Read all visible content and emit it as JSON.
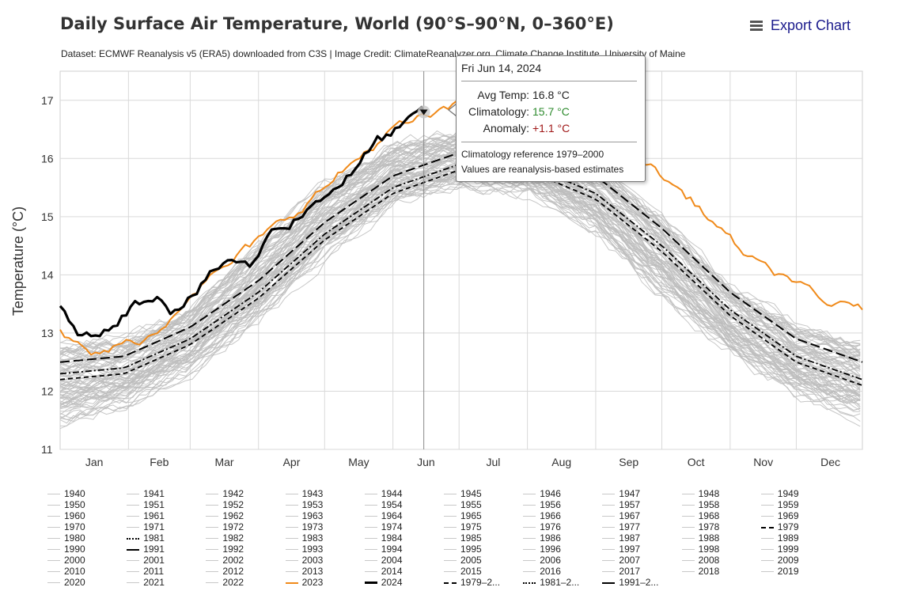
{
  "title": "Daily Surface Air Temperature, World (90°S–90°N, 0–360°E)",
  "subtitle": "Dataset: ECMWF Reanalysis v5 (ERA5) downloaded from C3S | Image Credit: ClimateReanalyzer.org, Climate Change Institute, University of Maine",
  "export_label": "Export Chart",
  "tooltip": {
    "date": "Fri Jun 14, 2024",
    "avg_label": "Avg Temp:",
    "avg_value": "16.8 °C",
    "clim_label": "Climatology:",
    "clim_value": "15.7 °C",
    "anom_label": "Anomaly:",
    "anom_value": "+1.1 °C",
    "note1": "Climatology reference 1979–2000",
    "note2": "Values are reanalysis-based estimates"
  },
  "colors": {
    "historical": "#bdbdbd",
    "year_2023": "#f08a1a",
    "year_2024": "#000000",
    "climatology": "#000000",
    "tooltip_clim": "#2e8b2e",
    "tooltip_anom": "#a01818",
    "export": "#1a1a8c"
  },
  "chart_data": {
    "type": "line",
    "title": "Daily Surface Air Temperature, World (90°S–90°N, 0–360°E)",
    "ylabel": "Temperature (°C)",
    "xlabel": "",
    "ylim": [
      11,
      17.5
    ],
    "y_ticks": [
      11,
      12,
      13,
      14,
      15,
      16,
      17
    ],
    "x_months": [
      "Jan",
      "Feb",
      "Mar",
      "Apr",
      "May",
      "Jun",
      "Jul",
      "Aug",
      "Sep",
      "Oct",
      "Nov",
      "Dec"
    ],
    "x_unit": "day of year",
    "grid": true,
    "legend_placement": "bottom",
    "historical_years": "1940–2022 (grey lines)",
    "historical_band": [
      {
        "x": 1,
        "low": 11.4,
        "high": 12.9
      },
      {
        "x": 30,
        "low": 11.7,
        "high": 13.0
      },
      {
        "x": 60,
        "low": 12.3,
        "high": 13.5
      },
      {
        "x": 91,
        "low": 13.2,
        "high": 14.6
      },
      {
        "x": 121,
        "low": 14.3,
        "high": 15.6
      },
      {
        "x": 152,
        "low": 15.2,
        "high": 16.3
      },
      {
        "x": 182,
        "low": 15.5,
        "high": 16.5
      },
      {
        "x": 213,
        "low": 15.4,
        "high": 16.4
      },
      {
        "x": 244,
        "low": 14.7,
        "high": 16.0
      },
      {
        "x": 274,
        "low": 13.6,
        "high": 15.1
      },
      {
        "x": 305,
        "low": 12.6,
        "high": 13.9
      },
      {
        "x": 335,
        "low": 11.9,
        "high": 13.2
      },
      {
        "x": 365,
        "low": 11.5,
        "high": 12.9
      }
    ],
    "series": [
      {
        "name": "2023",
        "values": [
          {
            "x": 1,
            "y": 13.0
          },
          {
            "x": 15,
            "y": 12.6
          },
          {
            "x": 30,
            "y": 12.8
          },
          {
            "x": 45,
            "y": 13.0
          },
          {
            "x": 60,
            "y": 13.7
          },
          {
            "x": 75,
            "y": 14.1
          },
          {
            "x": 91,
            "y": 14.6
          },
          {
            "x": 105,
            "y": 15.0
          },
          {
            "x": 121,
            "y": 15.5
          },
          {
            "x": 136,
            "y": 16.0
          },
          {
            "x": 152,
            "y": 16.5
          },
          {
            "x": 166,
            "y": 16.7
          },
          {
            "x": 182,
            "y": 16.9
          },
          {
            "x": 196,
            "y": 17.0
          },
          {
            "x": 213,
            "y": 17.0
          },
          {
            "x": 228,
            "y": 16.9
          },
          {
            "x": 244,
            "y": 16.6
          },
          {
            "x": 258,
            "y": 16.2
          },
          {
            "x": 274,
            "y": 15.7
          },
          {
            "x": 290,
            "y": 15.2
          },
          {
            "x": 305,
            "y": 14.6
          },
          {
            "x": 320,
            "y": 14.1
          },
          {
            "x": 335,
            "y": 13.9
          },
          {
            "x": 350,
            "y": 13.4
          },
          {
            "x": 358,
            "y": 13.6
          },
          {
            "x": 365,
            "y": 13.4
          }
        ]
      },
      {
        "name": "2024",
        "values": [
          {
            "x": 1,
            "y": 13.4
          },
          {
            "x": 10,
            "y": 13.0
          },
          {
            "x": 15,
            "y": 12.9
          },
          {
            "x": 25,
            "y": 13.2
          },
          {
            "x": 35,
            "y": 13.5
          },
          {
            "x": 45,
            "y": 13.7
          },
          {
            "x": 52,
            "y": 13.4
          },
          {
            "x": 60,
            "y": 13.6
          },
          {
            "x": 70,
            "y": 14.0
          },
          {
            "x": 78,
            "y": 14.3
          },
          {
            "x": 88,
            "y": 14.1
          },
          {
            "x": 95,
            "y": 14.7
          },
          {
            "x": 105,
            "y": 14.9
          },
          {
            "x": 115,
            "y": 15.2
          },
          {
            "x": 125,
            "y": 15.5
          },
          {
            "x": 135,
            "y": 15.8
          },
          {
            "x": 145,
            "y": 16.3
          },
          {
            "x": 155,
            "y": 16.5
          },
          {
            "x": 166,
            "y": 16.8
          }
        ]
      },
      {
        "name": "1979–2...",
        "style": "dashed",
        "values": [
          {
            "x": 1,
            "y": 12.2
          },
          {
            "x": 30,
            "y": 12.3
          },
          {
            "x": 60,
            "y": 12.8
          },
          {
            "x": 91,
            "y": 13.6
          },
          {
            "x": 121,
            "y": 14.6
          },
          {
            "x": 152,
            "y": 15.4
          },
          {
            "x": 182,
            "y": 15.8
          },
          {
            "x": 213,
            "y": 15.8
          },
          {
            "x": 244,
            "y": 15.3
          },
          {
            "x": 274,
            "y": 14.4
          },
          {
            "x": 305,
            "y": 13.3
          },
          {
            "x": 335,
            "y": 12.5
          },
          {
            "x": 365,
            "y": 12.1
          }
        ]
      },
      {
        "name": "1981–2...",
        "style": "dash-dot",
        "values": [
          {
            "x": 1,
            "y": 12.3
          },
          {
            "x": 30,
            "y": 12.4
          },
          {
            "x": 60,
            "y": 12.9
          },
          {
            "x": 91,
            "y": 13.7
          },
          {
            "x": 121,
            "y": 14.7
          },
          {
            "x": 152,
            "y": 15.5
          },
          {
            "x": 182,
            "y": 15.9
          },
          {
            "x": 213,
            "y": 15.9
          },
          {
            "x": 244,
            "y": 15.4
          },
          {
            "x": 274,
            "y": 14.5
          },
          {
            "x": 305,
            "y": 13.4
          },
          {
            "x": 335,
            "y": 12.6
          },
          {
            "x": 365,
            "y": 12.2
          }
        ]
      },
      {
        "name": "1991–2...",
        "style": "long-dash",
        "values": [
          {
            "x": 1,
            "y": 12.5
          },
          {
            "x": 30,
            "y": 12.6
          },
          {
            "x": 60,
            "y": 13.1
          },
          {
            "x": 91,
            "y": 13.9
          },
          {
            "x": 121,
            "y": 14.9
          },
          {
            "x": 152,
            "y": 15.7
          },
          {
            "x": 182,
            "y": 16.1
          },
          {
            "x": 213,
            "y": 16.1
          },
          {
            "x": 244,
            "y": 15.7
          },
          {
            "x": 274,
            "y": 14.8
          },
          {
            "x": 305,
            "y": 13.7
          },
          {
            "x": 335,
            "y": 12.9
          },
          {
            "x": 365,
            "y": 12.5
          }
        ]
      }
    ],
    "highlight_point": {
      "x": 166,
      "y": 16.8
    }
  },
  "legend": {
    "items": [
      "1940",
      "1941",
      "1942",
      "1943",
      "1944",
      "1945",
      "1946",
      "1947",
      "1948",
      "1949",
      "1950",
      "1951",
      "1952",
      "1953",
      "1954",
      "1955",
      "1956",
      "1957",
      "1958",
      "1959",
      "1960",
      "1961",
      "1962",
      "1963",
      "1964",
      "1965",
      "1966",
      "1967",
      "1968",
      "1969",
      "1970",
      "1971",
      "1972",
      "1973",
      "1974",
      "1975",
      "1976",
      "1977",
      "1978",
      "1979",
      "1980",
      "1981",
      "1982",
      "1983",
      "1984",
      "1985",
      "1986",
      "1987",
      "1988",
      "1989",
      "1990",
      "1991",
      "1992",
      "1993",
      "1994",
      "1995",
      "1996",
      "1997",
      "1998",
      "1999",
      "2000",
      "2001",
      "2002",
      "2003",
      "2004",
      "2005",
      "2006",
      "2007",
      "2008",
      "2009",
      "2010",
      "2011",
      "2012",
      "2013",
      "2014",
      "2015",
      "2016",
      "2017",
      "2018",
      "2019",
      "2020",
      "2021",
      "2022",
      "2023",
      "2024",
      "1979–2...",
      "1981–2...",
      "1991–2..."
    ]
  }
}
